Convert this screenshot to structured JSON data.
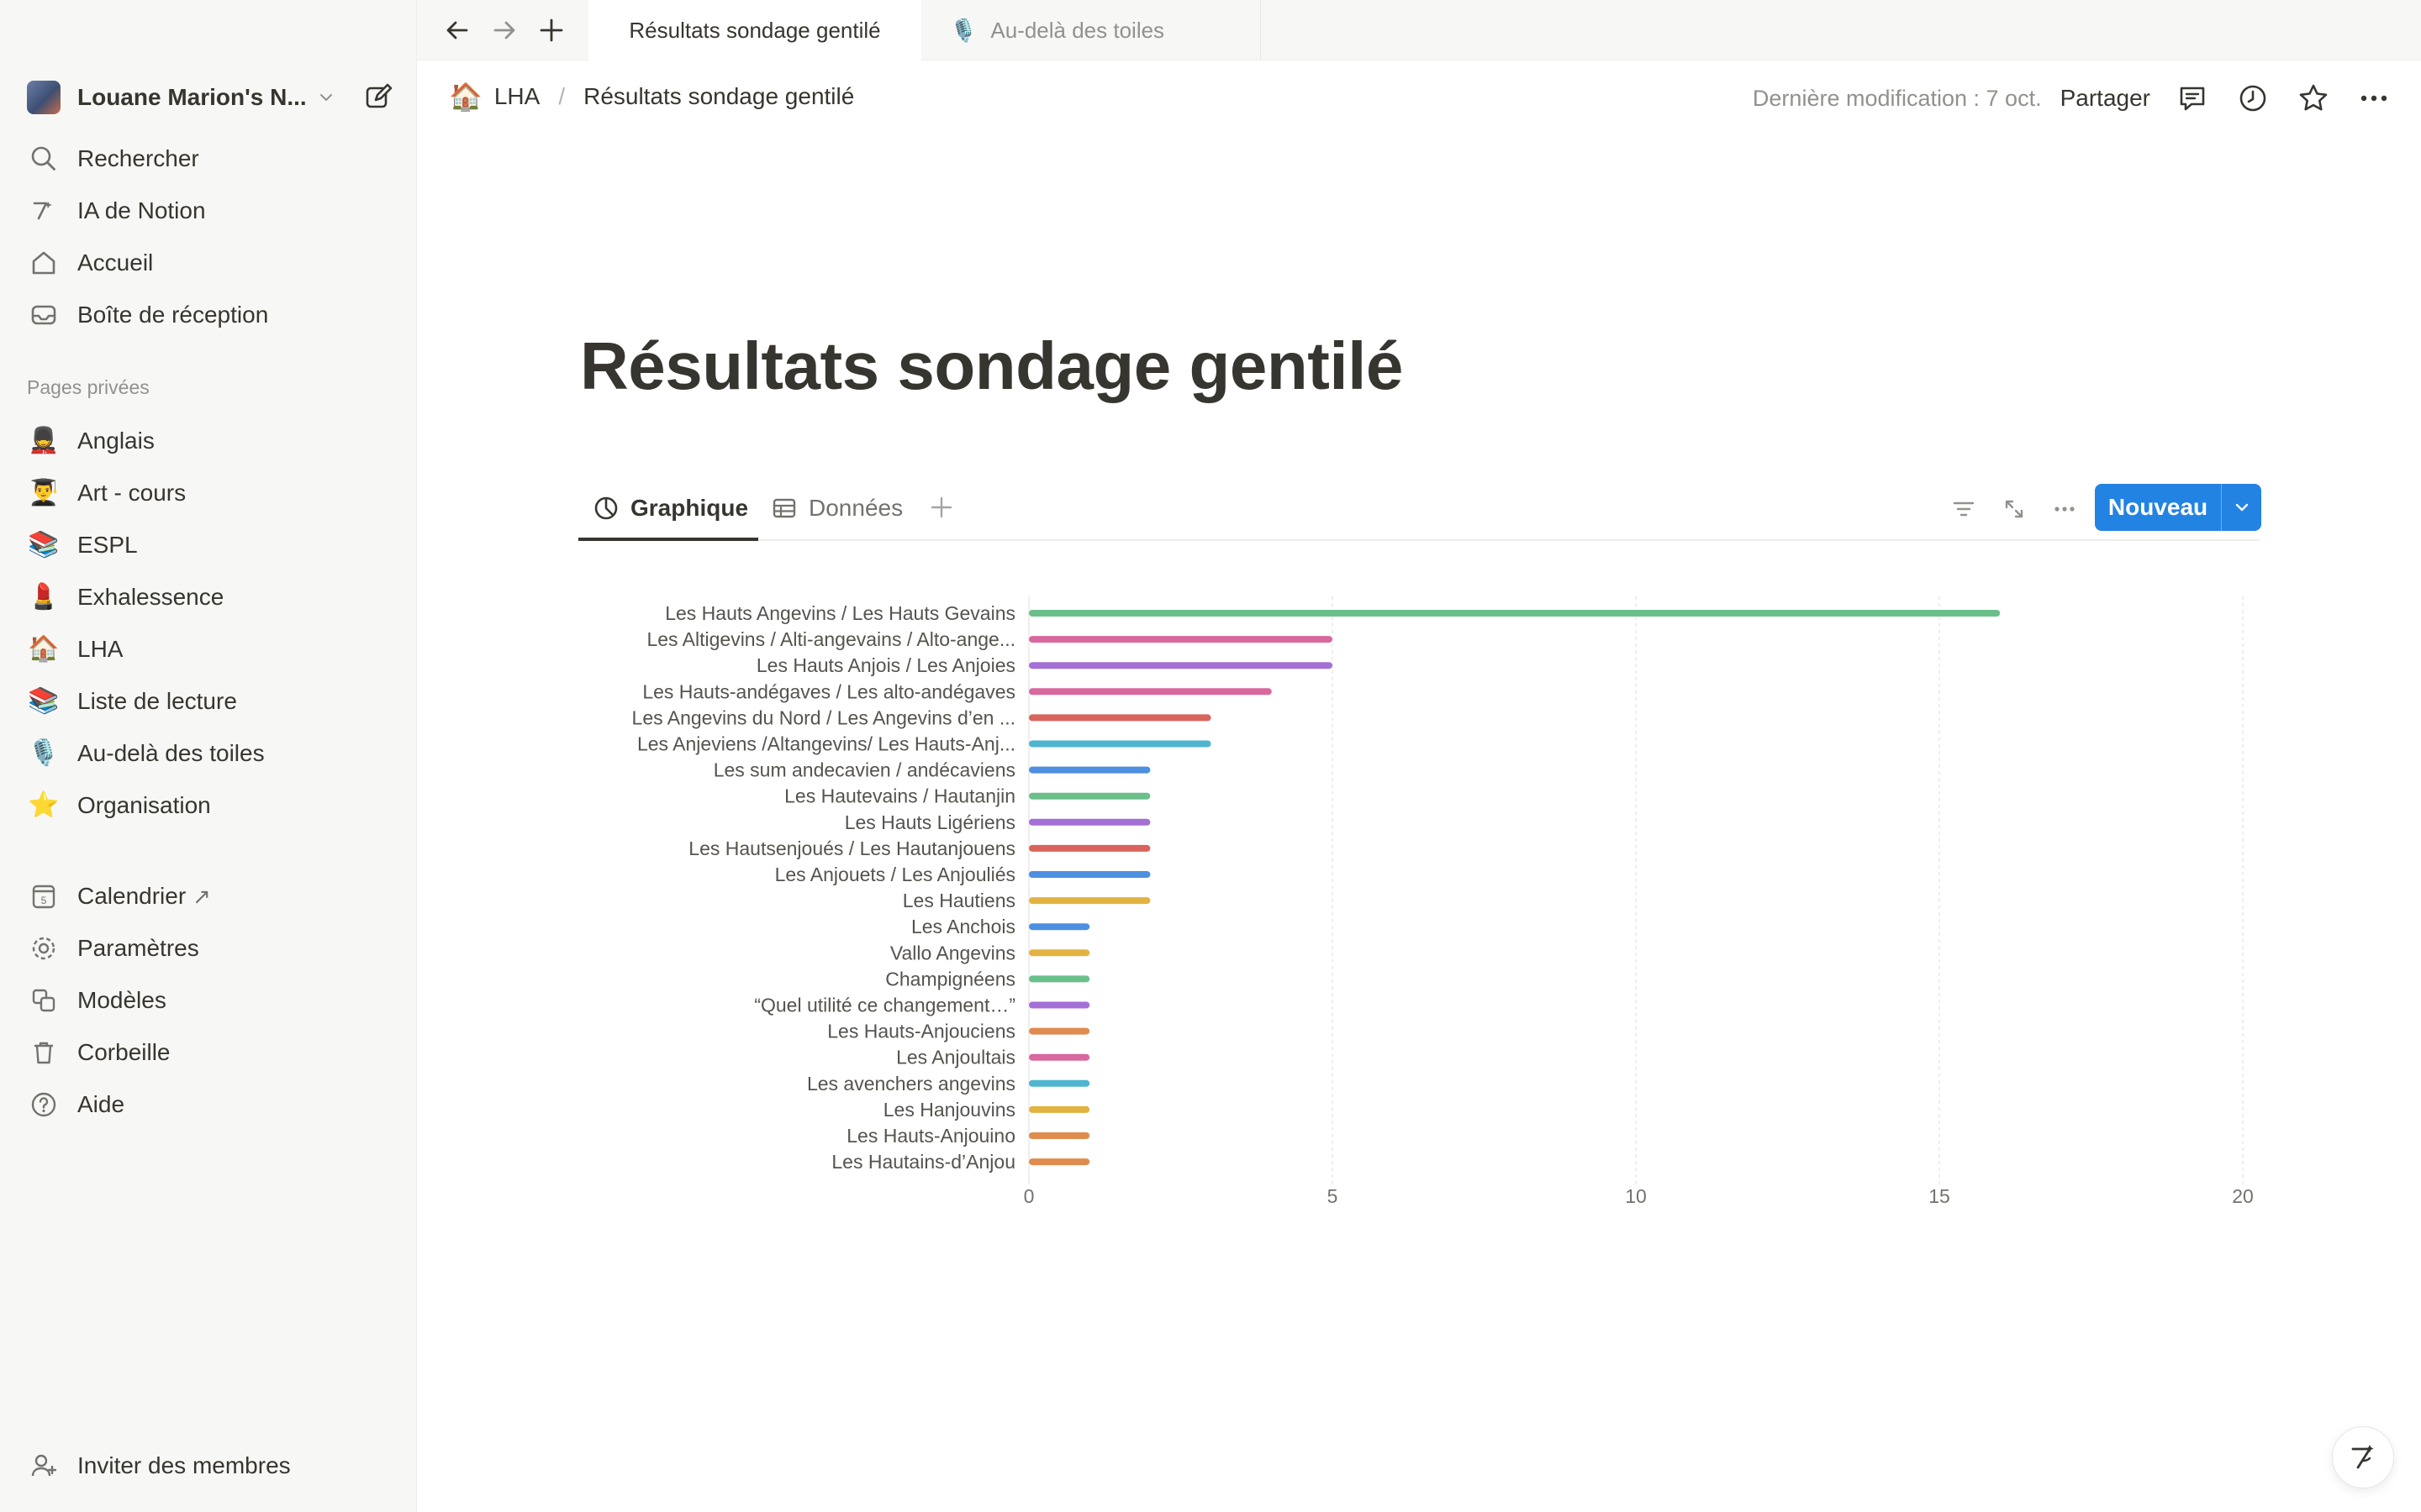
{
  "workspace": {
    "name": "Louane Marion's N..."
  },
  "nav_top": [
    {
      "label": "Rechercher",
      "icon": "search-icon"
    },
    {
      "label": "IA de Notion",
      "icon": "notion-ai-icon"
    },
    {
      "label": "Accueil",
      "icon": "home-icon"
    },
    {
      "label": "Boîte de réception",
      "icon": "inbox-icon"
    }
  ],
  "private_section_label": "Pages privées",
  "private_pages": [
    {
      "label": "Anglais",
      "emoji": "💂"
    },
    {
      "label": "Art - cours",
      "emoji": "👨‍🎓"
    },
    {
      "label": "ESPL",
      "emoji": "📚"
    },
    {
      "label": "Exhalessence",
      "emoji": "💄"
    },
    {
      "label": "LHA",
      "emoji": "🏠"
    },
    {
      "label": "Liste de lecture",
      "emoji": "📚"
    },
    {
      "label": "Au-delà des toiles",
      "emoji": "🎙️"
    },
    {
      "label": "Organisation",
      "emoji": "⭐"
    }
  ],
  "nav_bottom": [
    {
      "label": "Calendrier",
      "icon": "calendar-icon",
      "external": "↗"
    },
    {
      "label": "Paramètres",
      "icon": "settings-icon"
    },
    {
      "label": "Modèles",
      "icon": "templates-icon"
    },
    {
      "label": "Corbeille",
      "icon": "trash-icon"
    },
    {
      "label": "Aide",
      "icon": "help-icon"
    }
  ],
  "invite_label": "Inviter des membres",
  "tabs": [
    {
      "label": "Résultats sondage gentilé",
      "active": true
    },
    {
      "label": "Au-delà des toiles",
      "emoji": "🎙️",
      "active": false
    }
  ],
  "breadcrumb": {
    "parent_emoji": "🏠",
    "parent": "LHA",
    "separator": "/",
    "current": "Résultats sondage gentilé"
  },
  "header": {
    "last_modified": "Dernière modification : 7 oct.",
    "share": "Partager"
  },
  "page_title": "Résultats sondage gentilé",
  "views": [
    {
      "label": "Graphique",
      "icon": "chart-icon",
      "active": true
    },
    {
      "label": "Données",
      "icon": "table-icon",
      "active": false
    }
  ],
  "new_button": "Nouveau",
  "colors": {
    "accent": "#2383e2",
    "text": "#37352f",
    "muted": "#91918e",
    "sidebar_bg": "#f7f7f5"
  },
  "chart_data": {
    "type": "bar",
    "orientation": "horizontal",
    "categories": [
      "Les Hauts Angevins / Les Hauts Gevains",
      "Les Altigevins / Alti-angevains / Alto-ange...",
      "Les Hauts Anjois / Les Anjoies",
      "Les Hauts-andégaves / Les alto-andégaves",
      "Les Angevins du Nord / Les Angevins d’en ...",
      "Les Anjeviens /Altangevins/ Les Hauts-Anj...",
      "Les sum andecavien / andécaviens",
      "Les Hautevains / Hautanjin",
      "Les Hauts Ligériens",
      "Les Hautsenjoués / Les Hautanjouens",
      "Les Anjouets / Les Anjouliés",
      "Les Hautiens",
      "Les Anchois",
      "Vallo Angevins",
      "Champignéens",
      "“Quel utilité ce changement…”",
      "Les Hauts-Anjouciens",
      "Les Anjoultais",
      "Les avenchers angevins",
      "Les Hanjouvins",
      "Les Hauts-Anjouino",
      "Les Hautains-d’Anjou"
    ],
    "values": [
      16,
      5,
      5,
      4,
      3,
      3,
      2,
      2,
      2,
      2,
      2,
      2,
      1,
      1,
      1,
      1,
      1,
      1,
      1,
      1,
      1,
      1
    ],
    "bar_colors": [
      "#6bbf8a",
      "#d9689f",
      "#a470d6",
      "#d9689f",
      "#d9645c",
      "#4fb5cf",
      "#4d8fe0",
      "#6bbf8a",
      "#a470d6",
      "#d9645c",
      "#4d8fe0",
      "#e3b341",
      "#4d8fe0",
      "#e3b341",
      "#6bbf8a",
      "#a470d6",
      "#e08c4f",
      "#d9689f",
      "#4fb5cf",
      "#e3b341",
      "#e08c4f",
      "#e08c4f"
    ],
    "xlim": [
      0,
      20
    ],
    "xticks": [
      "0",
      "5",
      "10",
      "15",
      "20"
    ],
    "grid": true
  }
}
